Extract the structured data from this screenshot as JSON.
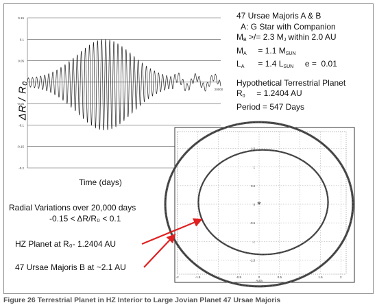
{
  "info": {
    "title": "47 Ursae Majoris A & B",
    "a_line": "A: G Star with Companion",
    "mb": {
      "sym": "M",
      "sub": "B",
      "rest": " >/= 2.3 M",
      "sub2": "J",
      "tail": " within 2.0 AU"
    },
    "ma": {
      "sym": "M",
      "sub": "A",
      "rest": "     = 1.1 M",
      "sub2": "SUN"
    },
    "la": {
      "sym": "L",
      "sub": "A",
      "rest": "      = 1.4 L",
      "sub2": "SUN",
      "tail": "     e =  0.01"
    },
    "hyp_title": "Hypothetical Terrestrial Planet",
    "r0": {
      "sym": "R",
      "sub": "0",
      "rest": "     = 1.2404 AU"
    },
    "period": "Period = 547 Days"
  },
  "labels": {
    "time_axis": "Time (days)",
    "y_axis": "ΔR / R₀",
    "radial_title": "Radial Variations over 20,000 days",
    "radial_range": "-0.15 < ΔR/R₀ < 0.1",
    "hz_planet": "HZ Planet at R₀-  1.2404 AU",
    "planet_b": "47 Ursae Majoris B at ~2.1 AU",
    "caption": "Figure 26 Terrestrial Planet in HZ Interior to Large Jovian Planet 47 Ursae Majoris"
  },
  "colors": {
    "arrow": "#e02020",
    "trace": "#222222",
    "grid": "#555555"
  },
  "chart_data": [
    {
      "type": "line",
      "title": "",
      "xlabel": "Time (days)",
      "ylabel": "ΔR / R₀",
      "xlim": [
        0,
        20000
      ],
      "ylim": [
        -0.2,
        0.15
      ],
      "y_ticks": [
        "0.15",
        "0.1",
        "0.05",
        "0",
        "-0.05",
        "-0.1",
        "-0.15",
        "-0.2"
      ],
      "x_ticks": [
        "20000"
      ],
      "envelope": {
        "max_amplitude": 0.1,
        "min_value": -0.15,
        "peak_day": 8000
      },
      "grid": true
    },
    {
      "type": "scatter",
      "title": "",
      "xlabel": "AU/a",
      "ylabel": "AU/a",
      "xlim": [
        -2,
        2
      ],
      "ylim": [
        -2,
        2
      ],
      "x_ticks": [
        "-2",
        "-1.5",
        "-1",
        "-0.5",
        "0",
        "0.5",
        "1",
        "1.5",
        "2"
      ],
      "y_ticks": [
        "1.5",
        "1",
        "0.5",
        "0",
        "-0.5",
        "-1",
        "-1.5"
      ],
      "series": [
        {
          "name": "HZ Planet",
          "radius_au": 1.2404
        },
        {
          "name": "47 Ursae Majoris B",
          "radius_au": 2.1
        }
      ],
      "grid": true
    }
  ]
}
